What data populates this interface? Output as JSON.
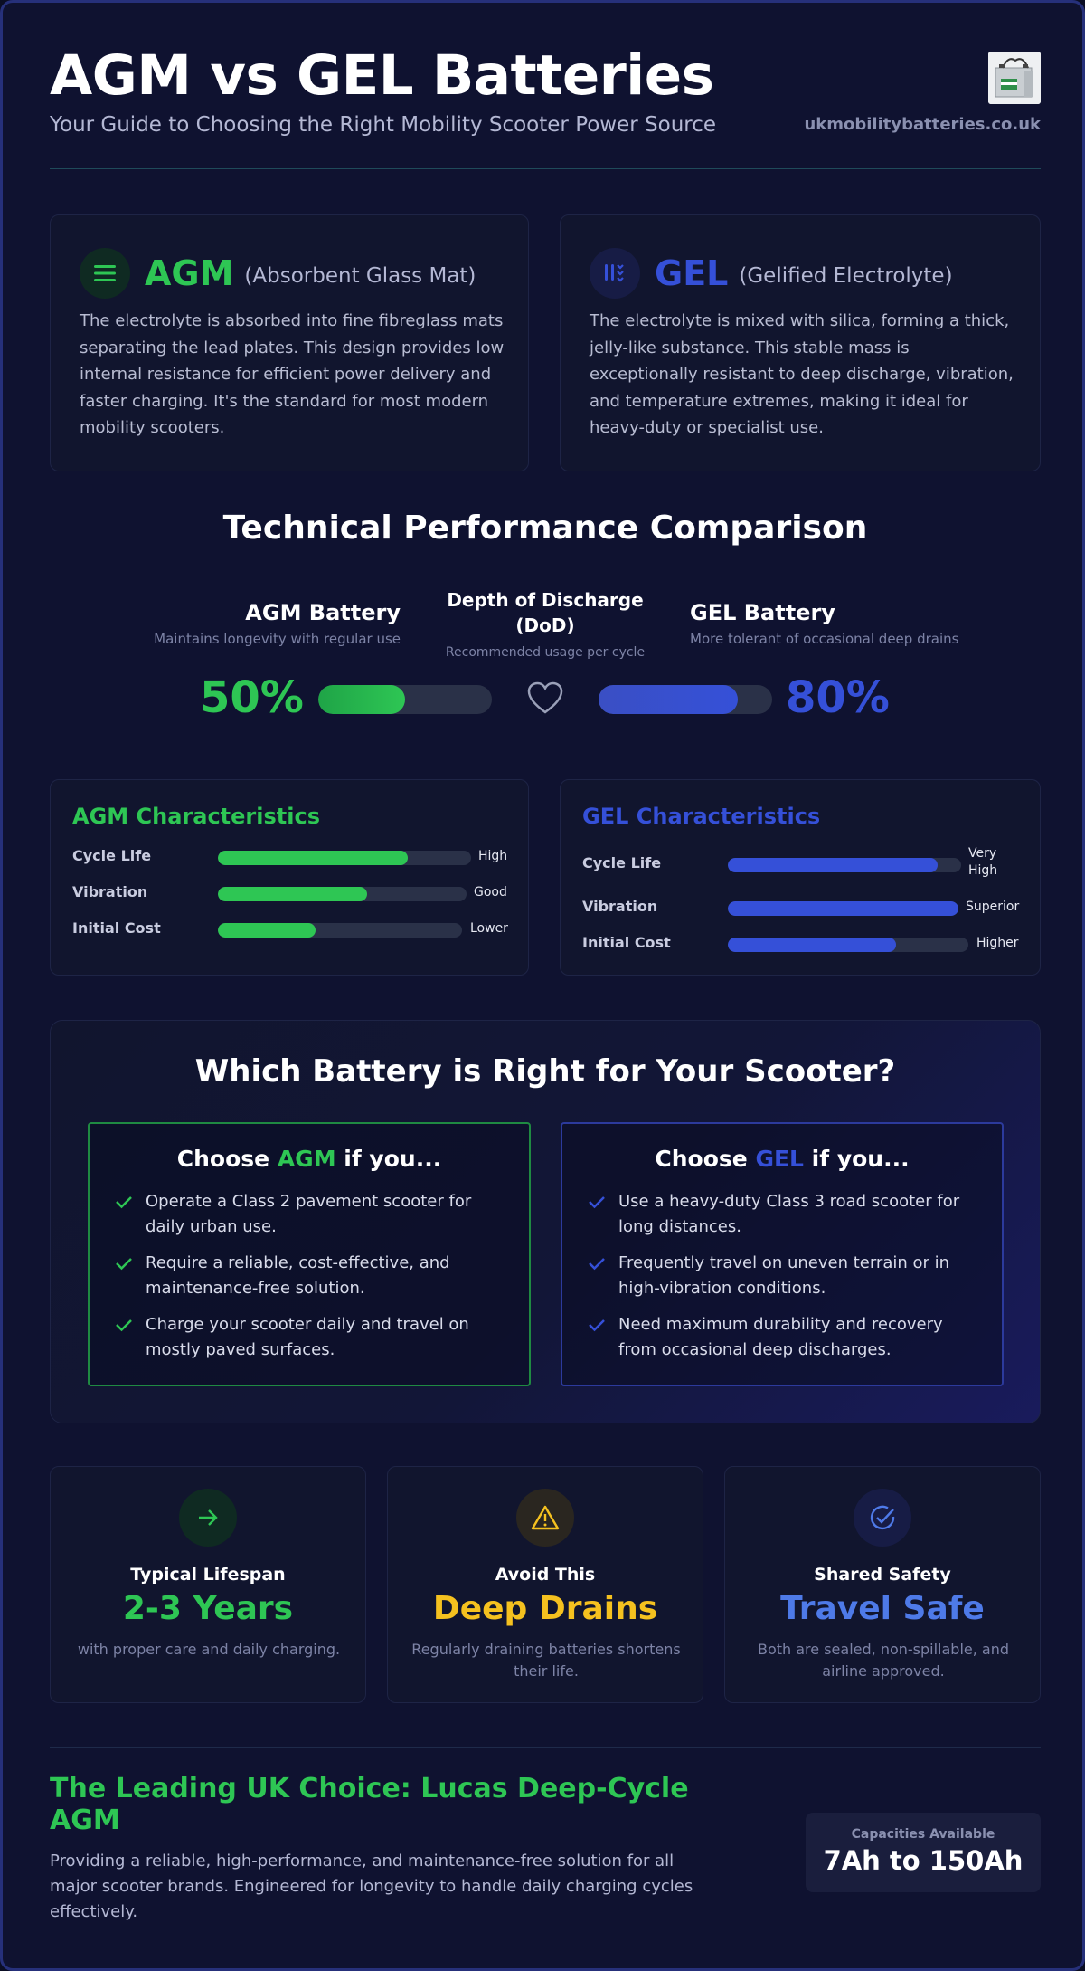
{
  "header": {
    "title": "AGM vs GEL Batteries",
    "subtitle": "Your Guide to Choosing the Right Mobility Scooter Power Source",
    "site": "ukmobilitybatteries.co.uk",
    "image_icon": "battery-product-icon"
  },
  "types": {
    "agm": {
      "name": "AGM",
      "full": "(Absorbent Glass Mat)",
      "desc": "The electrolyte is absorbed into fine fibreglass mats separating the lead plates. This design provides low internal resistance for efficient power delivery and faster charging. It's the standard for most modern mobility scooters.",
      "icon": "layers-icon"
    },
    "gel": {
      "name": "GEL",
      "full": "(Gelified Electrolyte)",
      "desc": "The electrolyte is mixed with silica, forming a thick, jelly-like substance. This stable mass is exceptionally resistant to deep discharge, vibration, and temperature extremes, making it ideal for heavy-duty or specialist use.",
      "icon": "gel-drops-icon"
    }
  },
  "comparison": {
    "title": "Technical Performance Comparison",
    "agm_name": "AGM Battery",
    "agm_note": "Maintains longevity with regular use",
    "center_title": "Depth of Discharge (DoD)",
    "center_note": "Recommended usage per cycle",
    "gel_name": "GEL Battery",
    "gel_note": "More tolerant of occasional deep drains",
    "agm_pct": "50%",
    "gel_pct": "80%",
    "agm_fill": 0.5,
    "gel_fill": 0.8,
    "center_icon": "heart-icon"
  },
  "characteristics": {
    "agm": {
      "title": "AGM Characteristics",
      "rows": [
        {
          "label": "Cycle Life",
          "value": "High",
          "fill": 0.75
        },
        {
          "label": "Vibration",
          "value": "Good",
          "fill": 0.6
        },
        {
          "label": "Initial Cost",
          "value": "Lower",
          "fill": 0.4
        }
      ]
    },
    "gel": {
      "title": "GEL Characteristics",
      "rows": [
        {
          "label": "Cycle Life",
          "value": "Very High",
          "fill": 0.9
        },
        {
          "label": "Vibration",
          "value": "Superior",
          "fill": 1.0
        },
        {
          "label": "Initial Cost",
          "value": "Higher",
          "fill": 0.7
        }
      ]
    }
  },
  "which": {
    "title": "Which Battery is Right for Your Scooter?",
    "agm": {
      "pre": "Choose ",
      "name": "AGM",
      "post": " if you...",
      "items": [
        "Operate a Class 2 pavement scooter for daily urban use.",
        "Require a reliable, cost-effective, and maintenance-free solution.",
        "Charge your scooter daily and travel on mostly paved surfaces."
      ]
    },
    "gel": {
      "pre": "Choose ",
      "name": "GEL",
      "post": " if you...",
      "items": [
        "Use a heavy-duty Class 3 road scooter for long distances.",
        "Frequently travel on uneven terrain or in high-vibration conditions.",
        "Need maximum durability and recovery from occasional deep discharges."
      ]
    }
  },
  "stats": [
    {
      "label": "Typical Lifespan",
      "value": "2-3 Years",
      "note": "with proper care and daily charging.",
      "icon": "arrow-right-icon",
      "color": "#2ec654"
    },
    {
      "label": "Avoid This",
      "value": "Deep Drains",
      "note": "Regularly draining batteries shortens their life.",
      "icon": "warning-icon",
      "color": "#f5c11f"
    },
    {
      "label": "Shared Safety",
      "value": "Travel Safe",
      "note": "Both are sealed, non-spillable, and airline approved.",
      "icon": "check-circle-icon",
      "color": "#4e7ae8"
    }
  ],
  "footer": {
    "title": "The Leading UK Choice: Lucas Deep-Cycle AGM",
    "desc": "Providing a reliable, high-performance, and maintenance-free solution for all major scooter brands. Engineered for longevity to handle daily charging cycles effectively.",
    "cap_label": "Capacities Available",
    "cap_value": "7Ah to 150Ah"
  },
  "colors": {
    "agm": "#2ec654",
    "gel": "#3550d8",
    "background": "#0f1230"
  }
}
